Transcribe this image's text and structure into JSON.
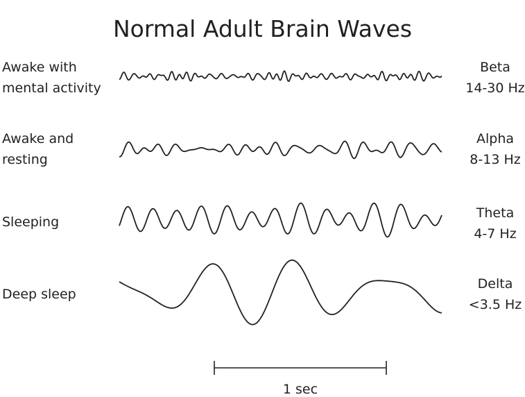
{
  "title": "Normal Adult Brain Waves",
  "rows": [
    {
      "state_lines": [
        "Awake with",
        "mental activity"
      ],
      "band": "Beta",
      "range": "14-30 Hz"
    },
    {
      "state_lines": [
        "Awake and",
        "resting"
      ],
      "band": "Alpha",
      "range": "8-13 Hz"
    },
    {
      "state_lines": [
        "Sleeping"
      ],
      "band": "Theta",
      "range": "4-7 Hz"
    },
    {
      "state_lines": [
        "Deep sleep"
      ],
      "band": "Delta",
      "range": "<3.5 Hz"
    }
  ],
  "scale_bar": {
    "label": "1 sec"
  },
  "colors": {
    "ink": "#231f20"
  }
}
